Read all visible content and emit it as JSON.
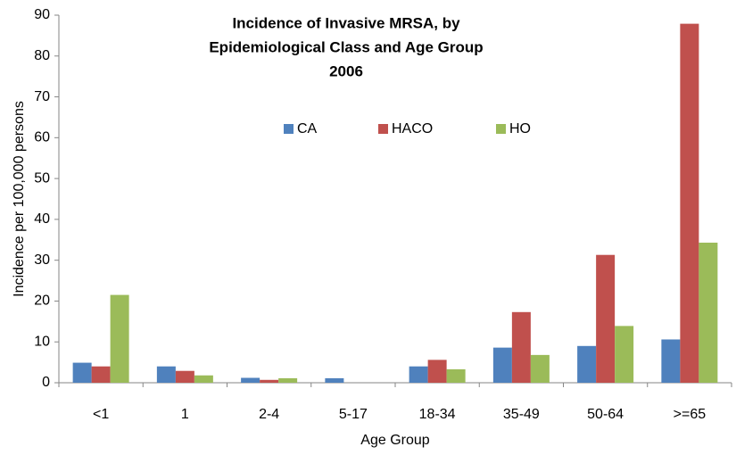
{
  "chart_data": {
    "type": "bar",
    "title": [
      "Incidence of Invasive MRSA, by",
      "Epidemiological Class and Age Group",
      "2006"
    ],
    "x_label": "Age Group",
    "y_label": "Incidence per 100,000 persons",
    "categories": [
      "<1",
      "1",
      "2-4",
      "5-17",
      "18-34",
      "35-49",
      "50-64",
      ">=65"
    ],
    "series": [
      {
        "name": "CA",
        "color": "#4f81bd",
        "values": [
          4.9,
          4.0,
          1.2,
          1.1,
          4.0,
          8.6,
          9.0,
          10.6
        ]
      },
      {
        "name": "HACO",
        "color": "#c0504d",
        "values": [
          4.0,
          2.9,
          0.7,
          0,
          5.6,
          17.3,
          31.3,
          87.9
        ]
      },
      {
        "name": "HO",
        "color": "#9bbb59",
        "values": [
          21.5,
          1.8,
          1.1,
          0,
          3.3,
          6.8,
          13.9,
          34.3
        ]
      }
    ],
    "ylim": [
      0,
      90
    ],
    "yticks": [
      0,
      10,
      20,
      30,
      40,
      50,
      60,
      70,
      80,
      90
    ],
    "grid": false,
    "legend": "top"
  }
}
